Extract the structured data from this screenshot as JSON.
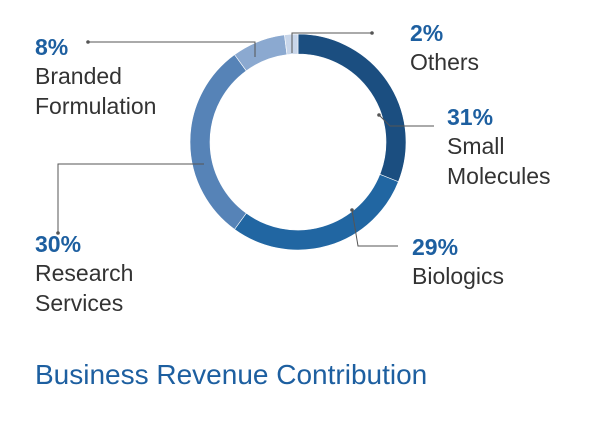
{
  "chart_data": {
    "type": "pie",
    "donut": true,
    "title": "Business Revenue Contribution",
    "slices": [
      {
        "label_lines": [
          "Small",
          "Molecules"
        ],
        "value": 31,
        "value_label": "31%",
        "color": "#1b4e80"
      },
      {
        "label_lines": [
          "Biologics"
        ],
        "value": 29,
        "value_label": "29%",
        "color": "#2166a2"
      },
      {
        "label_lines": [
          "Research",
          "Services"
        ],
        "value": 30,
        "value_label": "30%",
        "color": "#5683b7"
      },
      {
        "label_lines": [
          "Branded",
          "Formulation"
        ],
        "value": 8,
        "value_label": "8%",
        "color": "#8ba9d0"
      },
      {
        "label_lines": [
          "Others"
        ],
        "value": 2,
        "value_label": "2%",
        "color": "#c8d6ea"
      }
    ],
    "accent_color": "#1d5fa0",
    "text_color": "#333333"
  }
}
